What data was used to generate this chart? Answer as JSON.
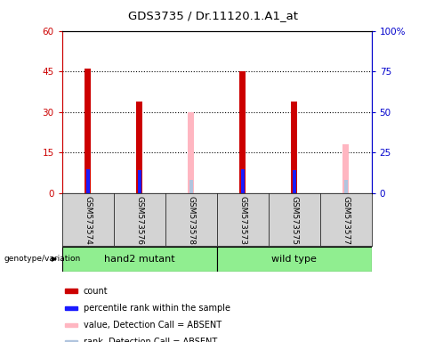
{
  "title": "GDS3735 / Dr.11120.1.A1_at",
  "samples": [
    "GSM573574",
    "GSM573576",
    "GSM573578",
    "GSM573573",
    "GSM573575",
    "GSM573577"
  ],
  "group_color": "#90EE90",
  "bar_width": 0.12,
  "count_values": [
    46,
    34,
    null,
    45,
    34,
    null
  ],
  "count_color": "#cc0000",
  "rank_values": [
    15,
    14,
    null,
    15,
    14,
    null
  ],
  "rank_color": "#1a1aff",
  "absent_value_values": [
    null,
    null,
    30,
    null,
    null,
    18
  ],
  "absent_rank_values": [
    null,
    null,
    8,
    null,
    null,
    8
  ],
  "absent_value_color": "#ffb6c1",
  "absent_rank_color": "#b0c4de",
  "ylim_left": [
    0,
    60
  ],
  "ylim_right": [
    0,
    100
  ],
  "yticks_left": [
    0,
    15,
    30,
    45,
    60
  ],
  "ytick_labels_left": [
    "0",
    "15",
    "30",
    "45",
    "60"
  ],
  "ytick_labels_right": [
    "0",
    "25",
    "50",
    "75",
    "100%"
  ],
  "yticks_right": [
    0,
    25,
    50,
    75,
    100
  ],
  "hlines": [
    15,
    30,
    45
  ],
  "left_axis_color": "#cc0000",
  "right_axis_color": "#0000cc",
  "label_bg_color": "#d3d3d3",
  "legend_items": [
    {
      "label": "count",
      "color": "#cc0000"
    },
    {
      "label": "percentile rank within the sample",
      "color": "#1a1aff"
    },
    {
      "label": "value, Detection Call = ABSENT",
      "color": "#ffb6c1"
    },
    {
      "label": "rank, Detection Call = ABSENT",
      "color": "#b0c4de"
    }
  ]
}
